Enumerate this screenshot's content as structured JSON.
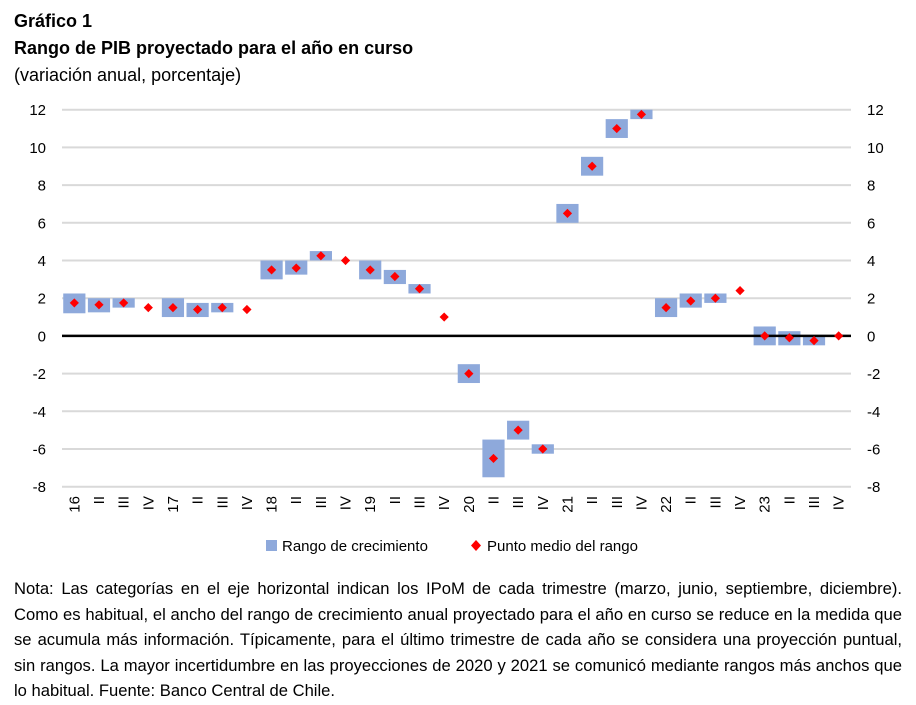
{
  "header": {
    "figure_label": "Gráfico 1",
    "title": "Rango de PIB proyectado para el año en curso",
    "subtitle": "(variación anual, porcentaje)"
  },
  "chart_data": {
    "type": "range-bar-with-marker",
    "title": "Rango de PIB proyectado para el año en curso",
    "subtitle": "(variación anual, porcentaje)",
    "xlabel": "",
    "ylabel": "",
    "ylim": [
      -8,
      12
    ],
    "yticks": [
      -8,
      -6,
      -4,
      -2,
      0,
      2,
      4,
      6,
      8,
      10,
      12
    ],
    "secondary_y_axis": true,
    "grid": true,
    "legend_position": "bottom",
    "categories": [
      "16",
      "II",
      "III",
      "IV",
      "17",
      "II",
      "III",
      "IV",
      "18",
      "II",
      "III",
      "IV",
      "19",
      "II",
      "III",
      "IV",
      "20",
      "II",
      "III",
      "IV",
      "21",
      "II",
      "III",
      "IV",
      "22",
      "II",
      "III",
      "IV",
      "23",
      "II",
      "III",
      "IV"
    ],
    "series": [
      {
        "name": "Rango de crecimiento",
        "kind": "range",
        "color": "#8EA9DB",
        "low": [
          1.2,
          1.25,
          1.5,
          null,
          1.0,
          1.0,
          1.25,
          null,
          3.0,
          3.25,
          4.0,
          null,
          3.0,
          2.75,
          2.25,
          null,
          -2.5,
          -7.5,
          -5.5,
          -6.25,
          6.0,
          8.5,
          10.5,
          11.5,
          1.0,
          1.5,
          1.75,
          null,
          -0.5,
          -0.5,
          -0.5,
          null
        ],
        "high": [
          2.25,
          2.0,
          2.0,
          null,
          2.0,
          1.75,
          1.75,
          null,
          4.0,
          4.0,
          4.5,
          null,
          4.0,
          3.5,
          2.75,
          null,
          -1.5,
          -5.5,
          -4.5,
          -5.75,
          7.0,
          9.5,
          11.5,
          12.0,
          2.0,
          2.25,
          2.25,
          null,
          0.5,
          0.25,
          0.0,
          null
        ]
      },
      {
        "name": "Punto medio del rango",
        "kind": "marker",
        "color": "#FF0000",
        "values": [
          1.75,
          1.65,
          1.75,
          1.5,
          1.5,
          1.4,
          1.5,
          1.4,
          3.5,
          3.6,
          4.25,
          4.0,
          3.5,
          3.15,
          2.5,
          1.0,
          -2.0,
          -6.5,
          -5.0,
          -6.0,
          6.5,
          9.0,
          11.0,
          11.75,
          1.5,
          1.85,
          2.0,
          2.4,
          0.0,
          -0.1,
          -0.25,
          0.0
        ]
      }
    ]
  },
  "legend": {
    "items": [
      {
        "label": "Rango de crecimiento",
        "icon": "square-icon",
        "color": "#8EA9DB"
      },
      {
        "label": "Punto medio del rango",
        "icon": "diamond-icon",
        "color": "#FF0000"
      }
    ]
  },
  "note": "Nota: Las categorías en el eje horizontal indican los IPoM de cada trimestre (marzo, junio, septiembre, diciembre). Como es habitual, el ancho del rango de crecimiento anual proyectado para el año en curso se reduce en la medida que se acumula más información. Típicamente, para el último trimestre de cada año se considera una proyección puntual, sin rangos. La mayor incertidumbre en las proyecciones de 2020 y 2021 se comunicó mediante rangos más anchos que lo habitual. Fuente: Banco Central de Chile."
}
